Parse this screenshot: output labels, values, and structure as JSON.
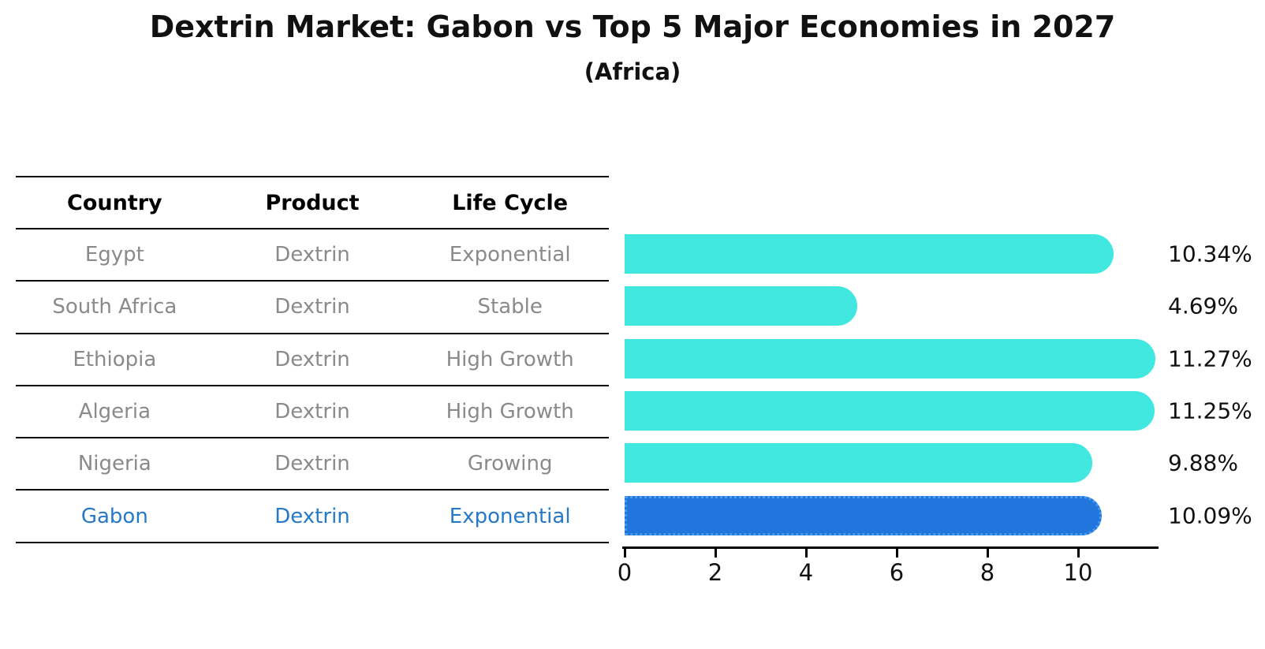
{
  "chart_data": {
    "type": "bar",
    "orientation": "horizontal",
    "title": "Dextrin Market: Gabon vs Top 5 Major Economies in 2027",
    "subtitle": "(Africa)",
    "categories": [
      "Egypt",
      "South Africa",
      "Ethiopia",
      "Algeria",
      "Nigeria",
      "Gabon"
    ],
    "values": [
      10.34,
      4.69,
      11.27,
      11.25,
      9.88,
      10.09
    ],
    "value_labels": [
      "10.34%",
      "4.69%",
      "11.27%",
      "11.25%",
      "9.88%",
      "10.09%"
    ],
    "highlighted_category": "Gabon",
    "xlim": [
      0,
      11.8
    ],
    "x_ticks": [
      "0",
      "2",
      "4",
      "6",
      "8",
      "10"
    ],
    "x_tick_values": [
      0,
      2,
      4,
      6,
      8,
      10
    ],
    "grid": false,
    "legend": "none",
    "bar_color": "#40E8E0",
    "highlight_bar_color": "#2176DE",
    "highlight_bar_border_color": "#4C9BEA"
  },
  "table": {
    "headers": [
      "Country",
      "Product",
      "Life Cycle"
    ],
    "rows": [
      {
        "country": "Egypt",
        "product": "Dextrin",
        "life_cycle": "Exponential",
        "highlight": false
      },
      {
        "country": "South Africa",
        "product": "Dextrin",
        "life_cycle": "Stable",
        "highlight": false
      },
      {
        "country": "Ethiopia",
        "product": "Dextrin",
        "life_cycle": "High Growth",
        "highlight": false
      },
      {
        "country": "Algeria",
        "product": "Dextrin",
        "life_cycle": "High Growth",
        "highlight": false
      },
      {
        "country": "Nigeria",
        "product": "Dextrin",
        "life_cycle": "Growing",
        "highlight": false
      },
      {
        "country": "Gabon",
        "product": "Dextrin",
        "life_cycle": "Exponential",
        "highlight": true
      }
    ],
    "cell_text_color": "#8a8a8a",
    "highlight_text_color": "#2579C7",
    "header_text_color": "#000000"
  }
}
